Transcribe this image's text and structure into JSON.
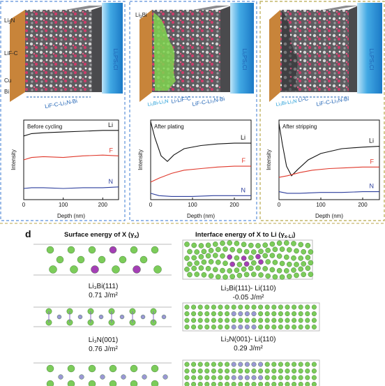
{
  "panel_letter": "d",
  "section_titles": {
    "surface": "Surface energy of X (γ",
    "surface_sub": "x",
    "interface": "Interface energy of X to Li (γ",
    "interface_sub": "x-Li"
  },
  "stack_labels": {
    "li3n": "Li",
    "li3n_sub": "3",
    "li3n_tail": "N",
    "lif_c": "LiF-C",
    "cu": "Cu",
    "bi": "Bi",
    "li3bi": "Li",
    "li3bi_sub": "3",
    "li3bi_tail": "Bi",
    "electrolyte": "Li₆PS₅Cl",
    "layer_a": "LiF-C-Li₃N-Bi",
    "layer_b1": "Li₃Bi-Li₃N",
    "layer_b2": "Li-LiF-C",
    "layer_b3": "LiF-C-Li₃N-Bi",
    "layer_c1": "Li₃Bi-Li₃N",
    "layer_c2": "Li-C",
    "layer_c3": "LiF-C-Li₃N-Bi"
  },
  "chart_data": [
    {
      "type": "line",
      "title": "Before cycling",
      "xlabel": "Depth (nm)",
      "ylabel": "Intensity",
      "xticks": [
        "0",
        "100",
        "200"
      ],
      "xlim": [
        0,
        240
      ],
      "series": [
        {
          "name": "Li",
          "color": "#111111",
          "x": [
            0,
            20,
            50,
            100,
            150,
            200,
            240
          ],
          "y": [
            0.8,
            0.83,
            0.84,
            0.85,
            0.86,
            0.87,
            0.87
          ]
        },
        {
          "name": "F",
          "color": "#e0382b",
          "x": [
            0,
            20,
            50,
            100,
            150,
            200,
            240
          ],
          "y": [
            0.5,
            0.53,
            0.54,
            0.53,
            0.55,
            0.56,
            0.55
          ]
        },
        {
          "name": "N",
          "color": "#2b3d9c",
          "x": [
            0,
            20,
            50,
            100,
            150,
            200,
            240
          ],
          "y": [
            0.14,
            0.15,
            0.15,
            0.14,
            0.15,
            0.15,
            0.16
          ]
        }
      ]
    },
    {
      "type": "line",
      "title": "After plating",
      "xlabel": "Depth (nm)",
      "ylabel": "Intensity",
      "xticks": [
        "0",
        "100",
        "200"
      ],
      "xlim": [
        0,
        240
      ],
      "series": [
        {
          "name": "Li",
          "color": "#111111",
          "x": [
            0,
            10,
            25,
            40,
            55,
            80,
            120,
            160,
            200,
            240
          ],
          "y": [
            0.98,
            0.78,
            0.55,
            0.48,
            0.56,
            0.64,
            0.68,
            0.7,
            0.71,
            0.71
          ]
        },
        {
          "name": "F",
          "color": "#e0382b",
          "x": [
            0,
            20,
            50,
            80,
            120,
            160,
            200,
            240
          ],
          "y": [
            0.22,
            0.27,
            0.33,
            0.37,
            0.39,
            0.41,
            0.42,
            0.42
          ]
        },
        {
          "name": "N",
          "color": "#2b3d9c",
          "x": [
            0,
            20,
            50,
            100,
            150,
            200,
            240
          ],
          "y": [
            0.08,
            0.05,
            0.04,
            0.04,
            0.05,
            0.05,
            0.05
          ]
        }
      ]
    },
    {
      "type": "line",
      "title": "After stripping",
      "xlabel": "Depth (nm)",
      "ylabel": "Intensity",
      "xticks": [
        "0",
        "100",
        "200"
      ],
      "xlim": [
        0,
        240
      ],
      "series": [
        {
          "name": "Li",
          "color": "#111111",
          "x": [
            0,
            8,
            18,
            30,
            45,
            70,
            100,
            150,
            200,
            240
          ],
          "y": [
            0.96,
            0.7,
            0.42,
            0.3,
            0.38,
            0.5,
            0.58,
            0.64,
            0.66,
            0.67
          ]
        },
        {
          "name": "F",
          "color": "#e0382b",
          "x": [
            0,
            20,
            50,
            80,
            120,
            160,
            200,
            240
          ],
          "y": [
            0.28,
            0.3,
            0.34,
            0.37,
            0.39,
            0.4,
            0.41,
            0.41
          ]
        },
        {
          "name": "N",
          "color": "#2b3d9c",
          "x": [
            0,
            20,
            50,
            100,
            150,
            200,
            240
          ],
          "y": [
            0.1,
            0.08,
            0.08,
            0.09,
            0.09,
            0.1,
            0.1
          ]
        }
      ]
    }
  ],
  "captions": {
    "li3bi_surface": "Li₃Bi(111)",
    "li3bi_surface_energy": "0.71 J/m²",
    "li3bi_interface": "Li₃Bi(111)- Li(110)",
    "li3bi_interface_energy": "-0.05 J/m²",
    "li3n_surface": "Li₃N(001)",
    "li3n_surface_energy": "0.76 J/m²",
    "li3n_interface": "Li₃N(001)- Li(110)",
    "li3n_interface_energy": "0.29 J/m²"
  },
  "colors": {
    "li_atom": "#7ccc5a",
    "bi_atom": "#a43fb5",
    "n_atom": "#9a97d4",
    "lif_layer": "#b97a2a",
    "electrolyte": "#3aa4e2",
    "dashed_blue": "#5b8fd9",
    "dashed_olive": "#b8a64a"
  }
}
